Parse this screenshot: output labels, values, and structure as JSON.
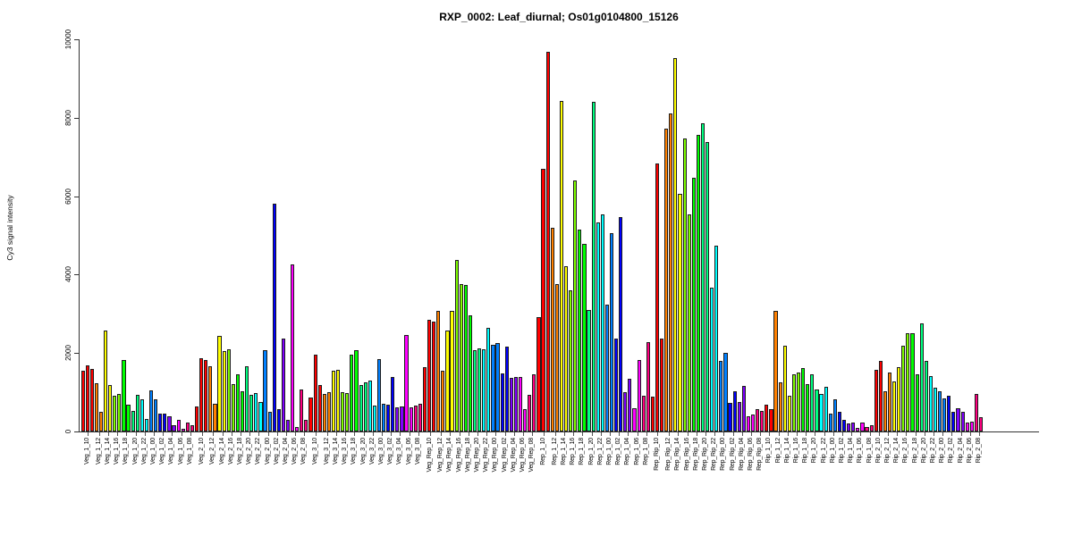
{
  "chart_data": {
    "type": "bar",
    "title": "RXP_0002: Leaf_diurnal; Os01g0104800_15126",
    "ylabel": "Cy3 signal intensity",
    "ylim": [
      0,
      10000
    ],
    "yticks": [
      0,
      2000,
      4000,
      6000,
      8000,
      10000
    ],
    "grid": false,
    "legend": "none",
    "palette": [
      "#FF0000",
      "#FF8000",
      "#FFFF00",
      "#80FF00",
      "#00FF00",
      "#00FF80",
      "#00FFFF",
      "#0080FF",
      "#0000FF",
      "#8000FF",
      "#FF00FF",
      "#FF0080"
    ],
    "series": [
      {
        "label": "Veg_1_10",
        "values": [
          1550,
          1690,
          1590
        ]
      },
      {
        "label": "Veg_1_12",
        "values": [
          1220,
          490
        ]
      },
      {
        "label": "Veg_1_14",
        "values": [
          2570,
          1190
        ]
      },
      {
        "label": "Veg_1_16",
        "values": [
          905,
          950
        ]
      },
      {
        "label": "Veg_1_18",
        "values": [
          1830,
          675
        ]
      },
      {
        "label": "Veg_1_20",
        "values": [
          520,
          925
        ]
      },
      {
        "label": "Veg_1_22",
        "values": [
          820,
          325
        ]
      },
      {
        "label": "Veg_1_00",
        "values": [
          1040,
          830
        ]
      },
      {
        "label": "Veg_1_02",
        "values": [
          450,
          465
        ]
      },
      {
        "label": "Veg_1_04",
        "values": [
          390,
          160
        ]
      },
      {
        "label": "Veg_1_06",
        "values": [
          295,
          60
        ]
      },
      {
        "label": "Veg_1_08",
        "values": [
          235,
          160
        ]
      },
      {
        "label": "Veg_2_10",
        "values": [
          640,
          1870,
          1830
        ]
      },
      {
        "label": "Veg_2_12",
        "values": [
          1670,
          700
        ]
      },
      {
        "label": "Veg_2_14",
        "values": [
          2430,
          2050
        ]
      },
      {
        "label": "Veg_2_16",
        "values": [
          2090,
          1215
        ]
      },
      {
        "label": "Veg_2_18",
        "values": [
          1460,
          1025
        ]
      },
      {
        "label": "Veg_2_20",
        "values": [
          1655,
          925
        ]
      },
      {
        "label": "Veg_2_22",
        "values": [
          970,
          745
        ]
      },
      {
        "label": "Veg_2_00",
        "values": [
          2065,
          495
        ]
      },
      {
        "label": "Veg_2_02",
        "values": [
          5820,
          570
        ]
      },
      {
        "label": "Veg_2_04",
        "values": [
          2370,
          305
        ]
      },
      {
        "label": "Veg_2_06",
        "values": [
          4250,
          115
        ]
      },
      {
        "label": "Veg_2_08",
        "values": [
          1080,
          305
        ]
      },
      {
        "label": "Veg_3_10",
        "values": [
          870,
          1970,
          1190
        ]
      },
      {
        "label": "Veg_3_12",
        "values": [
          950,
          1000
        ]
      },
      {
        "label": "Veg_3_14",
        "values": [
          1560,
          1580
        ]
      },
      {
        "label": "Veg_3_16",
        "values": [
          1000,
          990
        ]
      },
      {
        "label": "Veg_3_18",
        "values": [
          1950,
          2070
        ]
      },
      {
        "label": "Veg_3_20",
        "values": [
          1180,
          1260
        ]
      },
      {
        "label": "Veg_3_22",
        "values": [
          1300,
          650
        ]
      },
      {
        "label": "Veg_3_00",
        "values": [
          1850,
          710
        ]
      },
      {
        "label": "Veg_3_02",
        "values": [
          690,
          1380
        ]
      },
      {
        "label": "Veg_3_04",
        "values": [
          625,
          630
        ]
      },
      {
        "label": "Veg_3_06",
        "values": [
          2470,
          620
        ]
      },
      {
        "label": "Veg_3_08",
        "values": [
          660,
          700
        ]
      },
      {
        "label": "Veg_Rep_10",
        "values": [
          1650,
          2840,
          2800
        ]
      },
      {
        "label": "Veg_Rep_12",
        "values": [
          3070,
          1560
        ]
      },
      {
        "label": "Veg_Rep_14",
        "values": [
          2580,
          3080
        ]
      },
      {
        "label": "Veg_Rep_16",
        "values": [
          4380,
          3760
        ]
      },
      {
        "label": "Veg_Rep_18",
        "values": [
          3740,
          2950
        ]
      },
      {
        "label": "Veg_Rep_20",
        "values": [
          2080,
          2110
        ]
      },
      {
        "label": "Veg_Rep_22",
        "values": [
          2090,
          2650
        ]
      },
      {
        "label": "Veg_Rep_00",
        "values": [
          2200,
          2250
        ]
      },
      {
        "label": "Veg_Rep_02",
        "values": [
          1470,
          2160
        ]
      },
      {
        "label": "Veg_Rep_04",
        "values": [
          1360,
          1380
        ]
      },
      {
        "label": "Veg_Rep_06",
        "values": [
          1400,
          575
        ]
      },
      {
        "label": "Veg_Rep_08",
        "values": [
          925,
          1455
        ]
      },
      {
        "label": "Rep_1_10",
        "values": [
          2915,
          6690,
          9670
        ]
      },
      {
        "label": "Rep_1_12",
        "values": [
          5190,
          3750
        ]
      },
      {
        "label": "Rep_1_14",
        "values": [
          8430,
          4210
        ]
      },
      {
        "label": "Rep_1_16",
        "values": [
          3600,
          6390
        ]
      },
      {
        "label": "Rep_1_18",
        "values": [
          5140,
          4775
        ]
      },
      {
        "label": "Rep_1_20",
        "values": [
          3100,
          8400
        ]
      },
      {
        "label": "Rep_1_22",
        "values": [
          5320,
          5530
        ]
      },
      {
        "label": "Rep_1_00",
        "values": [
          3240,
          5060
        ]
      },
      {
        "label": "Rep_1_02",
        "values": [
          2370,
          5460
        ]
      },
      {
        "label": "Rep_1_04",
        "values": [
          1000,
          1340
        ]
      },
      {
        "label": "Rep_1_06",
        "values": [
          600,
          1830
        ]
      },
      {
        "label": "Rep_1_08",
        "values": [
          905,
          2270
        ]
      },
      {
        "label": "Rep_Rip_10",
        "values": [
          890,
          6840,
          2360
        ]
      },
      {
        "label": "Rep_Rip_12",
        "values": [
          7730,
          8100
        ]
      },
      {
        "label": "Rep_Rip_14",
        "values": [
          9520,
          6060
        ]
      },
      {
        "label": "Rep_Rip_16",
        "values": [
          7470,
          5530
        ]
      },
      {
        "label": "Rep_Rip_18",
        "values": [
          6470,
          7570
        ]
      },
      {
        "label": "Rep_Rip_20",
        "values": [
          7860,
          7370
        ]
      },
      {
        "label": "Rep_Rip_22",
        "values": [
          3670,
          4740
        ]
      },
      {
        "label": "Rep_Rip_00",
        "values": [
          1790,
          2000
        ]
      },
      {
        "label": "Rep_Rip_02",
        "values": [
          730,
          1020
        ]
      },
      {
        "label": "Rep_Rip_04",
        "values": [
          750,
          1170
        ]
      },
      {
        "label": "Rep_Rip_06",
        "values": [
          390,
          430
        ]
      },
      {
        "label": "Rep_Rip_08",
        "values": [
          560,
          525
        ]
      },
      {
        "label": "Rip_1_10",
        "values": [
          690,
          580
        ]
      },
      {
        "label": "Rip_1_12",
        "values": [
          3070,
          1245
        ]
      },
      {
        "label": "Rip_1_14",
        "values": [
          2180,
          900
        ]
      },
      {
        "label": "Rip_1_16",
        "values": [
          1450,
          1495
        ]
      },
      {
        "label": "Rip_1_18",
        "values": [
          1625,
          1210
        ]
      },
      {
        "label": "Rip_1_20",
        "values": [
          1450,
          1070
        ]
      },
      {
        "label": "Rip_1_22",
        "values": [
          965,
          1145
        ]
      },
      {
        "label": "Rip_1_00",
        "values": [
          450,
          810
        ]
      },
      {
        "label": "Rip_1_02",
        "values": [
          500,
          295
        ]
      },
      {
        "label": "Rip_1_04",
        "values": [
          205,
          220
        ]
      },
      {
        "label": "Rip_1_06",
        "values": [
          90,
          220
        ]
      },
      {
        "label": "Rip_1_08",
        "values": [
          120,
          165
        ]
      },
      {
        "label": "Rip_2_10",
        "values": [
          1570,
          1800
        ]
      },
      {
        "label": "Rip_2_12",
        "values": [
          1020,
          1495
        ]
      },
      {
        "label": "Rip_2_14",
        "values": [
          1280,
          1640
        ]
      },
      {
        "label": "Rip_2_16",
        "values": [
          2180,
          2500
        ]
      },
      {
        "label": "Rip_2_18",
        "values": [
          2500,
          1450
        ]
      },
      {
        "label": "Rip_2_20",
        "values": [
          2760,
          1800
        ]
      },
      {
        "label": "Rip_2_22",
        "values": [
          1420,
          1110
        ]
      },
      {
        "label": "Rip_2_00",
        "values": [
          1030,
          840
        ]
      },
      {
        "label": "Rip_2_02",
        "values": [
          920,
          500
        ]
      },
      {
        "label": "Rip_2_04",
        "values": [
          600,
          508
        ]
      },
      {
        "label": "Rip_2_06",
        "values": [
          220,
          258
        ]
      },
      {
        "label": "Rip_2_08",
        "values": [
          956,
          372
        ]
      }
    ]
  }
}
